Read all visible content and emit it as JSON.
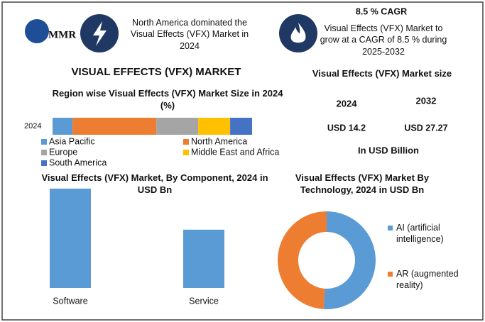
{
  "logo": "MMR",
  "header": {
    "highlight": "North America dominated the Visual Effects (VFX) Market in 2024",
    "cagr_title": "8.5 % CAGR",
    "cagr_text": "Visual Effects (VFX) Market to grow at a CAGR of 8.5 % during 2025-2032"
  },
  "title": "VISUAL EFFECTS (VFX) MARKET",
  "market_size": {
    "title": "Visual Effects (VFX) Market size",
    "years": [
      "2024",
      "2032"
    ],
    "values": [
      "USD 14.2",
      "USD 27.27"
    ],
    "unit": "In USD Billion"
  },
  "chart_data": [
    {
      "type": "stacked_bar",
      "title": "Region wise Visual Effects (VFX) Market Size in 2024 (%)",
      "categories": [
        "2024"
      ],
      "xlim": [
        0,
        100
      ],
      "series": [
        {
          "name": "Asia Pacific",
          "color": "#5b9bd5",
          "values": [
            10
          ]
        },
        {
          "name": "North America",
          "color": "#ed7d31",
          "values": [
            42
          ]
        },
        {
          "name": "Europe",
          "color": "#a5a5a5",
          "values": [
            21
          ]
        },
        {
          "name": "Middle East and Africa",
          "color": "#ffc000",
          "values": [
            16
          ]
        },
        {
          "name": "South America",
          "color": "#4472c4",
          "values": [
            11
          ]
        }
      ]
    },
    {
      "type": "bar",
      "title": "Visual Effects (VFX) Market, By Component, 2024 in USD Bn",
      "categories": [
        "Software",
        "Service"
      ],
      "values": [
        8.95,
        5.25
      ],
      "color": "#5b9bd5",
      "ylim": [
        0,
        9.2
      ]
    },
    {
      "type": "donut",
      "title": "Visual Effects (VFX) Market By Technology, 2024 in USD Bn",
      "categories": [
        "AI (artificial intelligence)",
        "AR (augmented reality)"
      ],
      "values": [
        51,
        49
      ],
      "colors": [
        "#5b9bd5",
        "#ed7d31"
      ]
    }
  ]
}
